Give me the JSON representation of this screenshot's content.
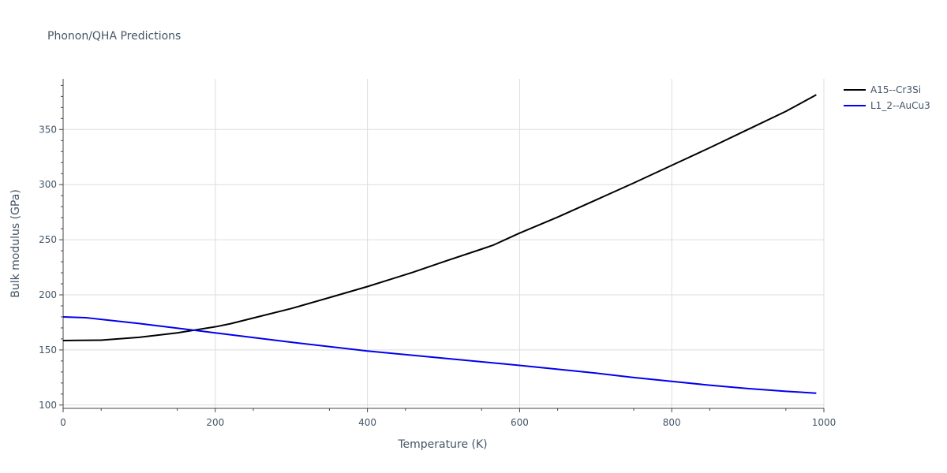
{
  "chart_data": {
    "type": "line",
    "title": "Phonon/QHA Predictions",
    "xlabel": "Temperature (K)",
    "ylabel": "Bulk modulus (GPa)",
    "xlim": [
      0,
      1000
    ],
    "ylim": [
      97,
      396
    ],
    "xticks": [
      0,
      200,
      400,
      600,
      800,
      1000
    ],
    "xtick_labels": [
      "0",
      "200",
      "400",
      "600",
      "800",
      "1000"
    ],
    "yticks": [
      100,
      150,
      200,
      250,
      300,
      350
    ],
    "ytick_labels": [
      "100",
      "150",
      "200",
      "250",
      "300",
      "350"
    ],
    "grid": true,
    "legend_position": "top-right",
    "series": [
      {
        "name": "A15--Cr3Si",
        "color": "#000000",
        "x": [
          0,
          20,
          50,
          60,
          100,
          150,
          200,
          220,
          250,
          300,
          350,
          400,
          460,
          500,
          550,
          565,
          600,
          650,
          700,
          750,
          800,
          850,
          900,
          950,
          990
        ],
        "y": [
          158.5,
          158.7,
          158.9,
          159.4,
          161.5,
          165.5,
          171.0,
          173.8,
          179.0,
          187.6,
          197.5,
          207.5,
          220.5,
          230.0,
          241.5,
          245.0,
          256.0,
          270.5,
          286.0,
          301.5,
          317.5,
          333.5,
          350.0,
          366.5,
          381.5
        ]
      },
      {
        "name": "L1_2--AuCu3",
        "color": "#0000ee",
        "x": [
          0,
          30,
          40,
          100,
          200,
          300,
          400,
          500,
          600,
          700,
          750,
          800,
          850,
          900,
          950,
          990
        ],
        "y": [
          180.0,
          179.3,
          178.5,
          174.0,
          165.5,
          157.0,
          149.0,
          142.5,
          136.0,
          129.0,
          125.0,
          121.5,
          118.0,
          115.0,
          112.5,
          110.8
        ]
      }
    ]
  }
}
